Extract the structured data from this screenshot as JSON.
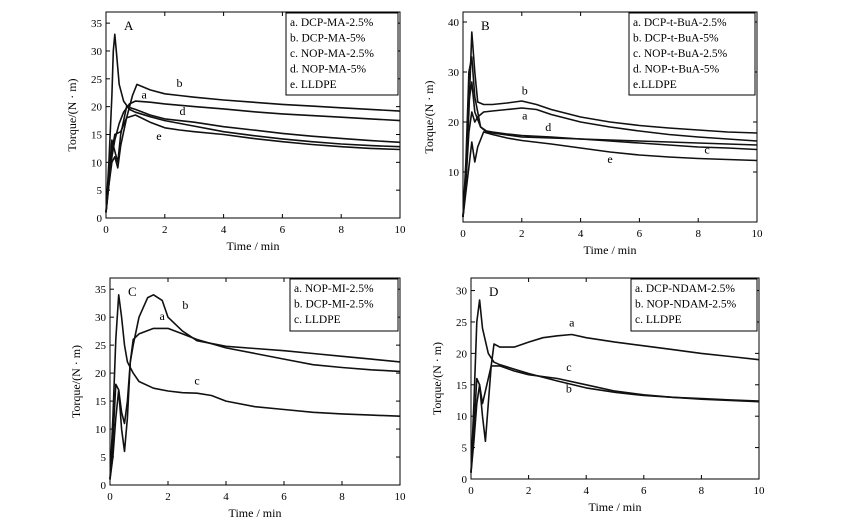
{
  "chart_data": [
    {
      "type": "line",
      "panel_label": "A",
      "xlabel": "Time / min",
      "ylabel": "Torque/(N · m)",
      "xlim": [
        0,
        10
      ],
      "ylim": [
        0,
        37
      ],
      "xticks": [
        0,
        2,
        4,
        6,
        8,
        10
      ],
      "yticks": [
        0,
        5,
        10,
        15,
        20,
        25,
        30,
        35
      ],
      "grid": false,
      "legend_position": "top-right",
      "legend": [
        "a. DCP-MA-2.5%",
        "b. DCP-MA-5%",
        "c. NOP-MA-2.5%",
        "d. NOP-MA-5%",
        "e. LLDPE"
      ],
      "series": [
        {
          "letter": "a",
          "x": [
            0,
            0.1,
            0.2,
            0.3,
            0.45,
            0.6,
            0.8,
            1.0,
            1.5,
            2,
            3,
            4,
            5,
            6,
            7,
            8,
            9,
            10
          ],
          "y": [
            1,
            6,
            11,
            14,
            17,
            19,
            20.5,
            21,
            20.8,
            20.5,
            20,
            19.6,
            19.1,
            18.7,
            18.4,
            18.1,
            17.8,
            17.5
          ]
        },
        {
          "letter": "b",
          "x": [
            0,
            0.1,
            0.2,
            0.3,
            0.5,
            0.7,
            0.9,
            1.05,
            1.5,
            2,
            2.5,
            3,
            4,
            5,
            6,
            7,
            8,
            9,
            10
          ],
          "y": [
            1,
            7,
            12,
            15,
            15.5,
            18,
            22,
            24,
            23,
            22.3,
            22,
            21.7,
            21.2,
            20.8,
            20.4,
            20.1,
            19.8,
            19.5,
            19.2
          ]
        },
        {
          "letter": "c",
          "x": [
            0,
            0.1,
            0.2,
            0.25,
            0.3,
            0.35,
            0.45,
            0.6,
            0.8,
            1,
            1.5,
            2,
            3,
            4,
            5,
            6,
            7,
            8,
            9,
            10
          ],
          "y": [
            1,
            10,
            22,
            30,
            33,
            30,
            24,
            21,
            19.5,
            19,
            18.2,
            17.5,
            16.5,
            15.5,
            14.8,
            14.2,
            13.7,
            13.3,
            13,
            12.8
          ]
        },
        {
          "letter": "d",
          "x": [
            0,
            0.1,
            0.2,
            0.3,
            0.4,
            0.5,
            0.7,
            1,
            1.5,
            2,
            2.5,
            3,
            4,
            5,
            6,
            7,
            8,
            9,
            10
          ],
          "y": [
            1,
            8,
            14,
            12,
            10,
            15,
            20,
            19.5,
            18.5,
            17.8,
            17.5,
            17.2,
            16.4,
            15.8,
            15.2,
            14.7,
            14.3,
            13.9,
            13.6
          ]
        },
        {
          "letter": "e",
          "x": [
            0,
            0.1,
            0.2,
            0.3,
            0.4,
            0.5,
            0.7,
            1,
            1.5,
            2,
            2.5,
            3,
            4,
            5,
            6,
            7,
            8,
            9,
            10
          ],
          "y": [
            1,
            6,
            10,
            11,
            9,
            13,
            18,
            18.5,
            17.2,
            16.2,
            15.8,
            15.5,
            15,
            14.3,
            13.7,
            13.2,
            12.8,
            12.5,
            12.3
          ]
        }
      ],
      "annotations": [
        {
          "text": "b",
          "x": 2.5,
          "y": 23.5
        },
        {
          "text": "a",
          "x": 1.3,
          "y": 21.5
        },
        {
          "text": "d",
          "x": 2.6,
          "y": 18.5
        },
        {
          "text": "e",
          "x": 1.8,
          "y": 14.0
        }
      ]
    },
    {
      "type": "line",
      "panel_label": "B",
      "xlabel": "Time / min",
      "ylabel": "Torque/(N · m)",
      "xlim": [
        0,
        10
      ],
      "ylim": [
        0,
        42
      ],
      "xticks": [
        0,
        2,
        4,
        6,
        8,
        10
      ],
      "yticks": [
        10,
        20,
        30,
        40
      ],
      "grid": false,
      "legend_position": "top-right",
      "legend": [
        "a. DCP-t-BuA-2.5%",
        "b. DCP-t-BuA-5%",
        "c. NOP-t-BuA-2.5%",
        "d. NOP-t-BuA-5%",
        "e.LLDPE"
      ],
      "series": [
        {
          "letter": "a",
          "x": [
            0,
            0.1,
            0.2,
            0.3,
            0.4,
            0.5,
            0.7,
            1,
            1.5,
            2,
            2.5,
            3,
            4,
            5,
            6,
            7,
            8,
            9,
            10
          ],
          "y": [
            1,
            8,
            18,
            22,
            20,
            21,
            22,
            22.2,
            22.5,
            22.8,
            22.5,
            21.5,
            20,
            19,
            18.2,
            17.5,
            17,
            16.6,
            16.2
          ]
        },
        {
          "letter": "b",
          "x": [
            0,
            0.1,
            0.2,
            0.3,
            0.4,
            0.5,
            0.7,
            1,
            1.5,
            2,
            2.5,
            3,
            4,
            5,
            6,
            7,
            8,
            9,
            10
          ],
          "y": [
            1,
            10,
            22,
            38,
            30,
            24,
            23.5,
            23.5,
            23.8,
            24.2,
            23.5,
            22.5,
            21,
            20,
            19.3,
            18.8,
            18.4,
            18,
            17.8
          ]
        },
        {
          "letter": "c",
          "x": [
            0,
            0.1,
            0.2,
            0.3,
            0.4,
            0.6,
            0.8,
            1,
            1.5,
            2,
            3,
            4,
            5,
            6,
            7,
            8,
            9,
            10
          ],
          "y": [
            1,
            10,
            24,
            28,
            22,
            19,
            18.2,
            18,
            17.6,
            17.3,
            17,
            16.6,
            16.2,
            15.8,
            15.4,
            15,
            14.8,
            14.5
          ]
        },
        {
          "letter": "d",
          "x": [
            0,
            0.1,
            0.2,
            0.3,
            0.4,
            0.6,
            0.8,
            1,
            1.5,
            2,
            2.5,
            3,
            4,
            5,
            6,
            7,
            8,
            9,
            10
          ],
          "y": [
            1,
            12,
            30,
            33,
            25,
            19,
            18,
            17.8,
            17.4,
            17,
            16.9,
            16.8,
            16.6,
            16.4,
            16.2,
            16,
            15.8,
            15.6,
            15.4
          ]
        },
        {
          "letter": "e",
          "x": [
            0,
            0.1,
            0.2,
            0.3,
            0.4,
            0.5,
            0.7,
            1,
            1.5,
            2,
            3,
            4,
            5,
            6,
            7,
            8,
            9,
            10
          ],
          "y": [
            1,
            6,
            11,
            16,
            12,
            15,
            18,
            17.5,
            16.8,
            16.3,
            15.6,
            14.8,
            14,
            13.4,
            13,
            12.7,
            12.5,
            12.3
          ]
        }
      ],
      "annotations": [
        {
          "text": "b",
          "x": 2.1,
          "y": 25.5
        },
        {
          "text": "a",
          "x": 2.1,
          "y": 20.5
        },
        {
          "text": "d",
          "x": 2.9,
          "y": 18.2
        },
        {
          "text": "c",
          "x": 8.3,
          "y": 13.7
        },
        {
          "text": "e",
          "x": 5.0,
          "y": 11.8
        }
      ]
    },
    {
      "type": "line",
      "panel_label": "C",
      "xlabel": "Time / min",
      "ylabel": "Torque/(N · m)",
      "xlim": [
        0,
        10
      ],
      "ylim": [
        0,
        37
      ],
      "xticks": [
        0,
        2,
        4,
        6,
        8,
        10
      ],
      "yticks": [
        0,
        5,
        10,
        15,
        20,
        25,
        30,
        35
      ],
      "grid": false,
      "legend_position": "top-right",
      "legend": [
        "a. NOP-MI-2.5%",
        "b. DCP-MI-2.5%",
        "c. LLDPE"
      ],
      "series": [
        {
          "letter": "a",
          "x": [
            0,
            0.1,
            0.2,
            0.3,
            0.4,
            0.5,
            0.6,
            0.7,
            0.8,
            1,
            1.5,
            2,
            2.5,
            3,
            4,
            5,
            6,
            7,
            8,
            9,
            10
          ],
          "y": [
            1,
            5,
            12,
            17,
            13,
            11,
            15,
            22,
            26,
            27,
            28,
            28,
            27,
            26,
            24.5,
            23.5,
            22.5,
            21.5,
            21,
            20.6,
            20.3
          ]
        },
        {
          "letter": "b",
          "x": [
            0,
            0.1,
            0.2,
            0.3,
            0.4,
            0.5,
            0.6,
            0.7,
            0.8,
            1,
            1.3,
            1.5,
            1.8,
            2,
            2.5,
            3,
            4,
            5,
            6,
            7,
            8,
            9,
            10
          ],
          "y": [
            1,
            8,
            18,
            17,
            10,
            6,
            12,
            22,
            25,
            30,
            33.5,
            34,
            33,
            30,
            27.5,
            25.8,
            24.8,
            24.4,
            24,
            23.5,
            23,
            22.5,
            22
          ]
        },
        {
          "letter": "c",
          "x": [
            0,
            0.1,
            0.2,
            0.3,
            0.4,
            0.5,
            0.6,
            0.8,
            1,
            1.5,
            2,
            2.5,
            3,
            3.5,
            4,
            5,
            6,
            7,
            8,
            9,
            10
          ],
          "y": [
            1,
            12,
            26,
            34,
            30,
            25,
            22,
            20,
            18.5,
            17.3,
            16.8,
            16.5,
            16.4,
            16,
            15,
            14,
            13.5,
            13,
            12.7,
            12.5,
            12.3
          ]
        }
      ],
      "annotations": [
        {
          "text": "b",
          "x": 2.6,
          "y": 31.5
        },
        {
          "text": "a",
          "x": 1.8,
          "y": 29.5
        },
        {
          "text": "c",
          "x": 3.0,
          "y": 18.0
        }
      ]
    },
    {
      "type": "line",
      "panel_label": "D",
      "xlabel": "Time / min",
      "ylabel": "Torque/(N · m)",
      "xlim": [
        0,
        10
      ],
      "ylim": [
        0,
        32
      ],
      "xticks": [
        0,
        2,
        4,
        6,
        8,
        10
      ],
      "yticks": [
        0,
        5,
        10,
        15,
        20,
        25,
        30
      ],
      "grid": false,
      "legend_position": "top-right",
      "legend": [
        "a. DCP-NDAM-2.5%",
        "b. NOP-NDAM-2.5%",
        "c. LLDPE"
      ],
      "series": [
        {
          "letter": "a",
          "x": [
            0,
            0.1,
            0.2,
            0.3,
            0.4,
            0.5,
            0.6,
            0.7,
            0.8,
            1,
            1.5,
            2,
            2.5,
            3,
            3.5,
            4,
            5,
            6,
            7,
            8,
            9,
            10
          ],
          "y": [
            1,
            8,
            16,
            15,
            10,
            6,
            12,
            18,
            21.5,
            21,
            21,
            21.8,
            22.5,
            22.8,
            23,
            22.5,
            21.8,
            21.2,
            20.6,
            20,
            19.5,
            19
          ]
        },
        {
          "letter": "b",
          "x": [
            0,
            0.1,
            0.2,
            0.3,
            0.4,
            0.6,
            0.8,
            1,
            1.5,
            2,
            3,
            4,
            5,
            6,
            7,
            8,
            9,
            10
          ],
          "y": [
            1,
            12,
            25,
            28.5,
            24,
            20,
            18.6,
            18.2,
            17.5,
            16.8,
            15.6,
            14.5,
            13.8,
            13.3,
            13,
            12.8,
            12.6,
            12.4
          ]
        },
        {
          "letter": "c",
          "x": [
            0,
            0.1,
            0.2,
            0.3,
            0.4,
            0.5,
            0.7,
            1,
            1.5,
            2,
            3,
            4,
            5,
            6,
            7,
            8,
            9,
            10
          ],
          "y": [
            1,
            6,
            12,
            15,
            12,
            14,
            18,
            18,
            17.2,
            16.6,
            16,
            15,
            14,
            13.4,
            13,
            12.7,
            12.5,
            12.3
          ]
        }
      ],
      "annotations": [
        {
          "text": "a",
          "x": 3.5,
          "y": 24.3
        },
        {
          "text": "c",
          "x": 3.4,
          "y": 17.2
        },
        {
          "text": "b",
          "x": 3.4,
          "y": 13.8
        }
      ]
    }
  ]
}
